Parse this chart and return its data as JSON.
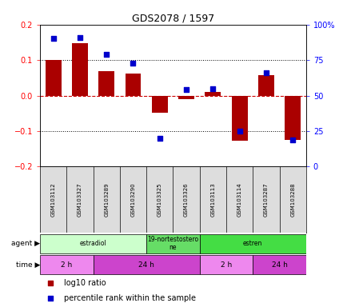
{
  "title": "GDS2078 / 1597",
  "samples": [
    "GSM103112",
    "GSM103327",
    "GSM103289",
    "GSM103290",
    "GSM103325",
    "GSM103326",
    "GSM103113",
    "GSM103114",
    "GSM103287",
    "GSM103288"
  ],
  "log10_ratio": [
    0.1,
    0.148,
    0.068,
    0.063,
    -0.048,
    -0.01,
    0.01,
    -0.128,
    0.058,
    -0.125
  ],
  "percentile_rank": [
    90,
    91,
    79,
    73,
    20,
    54,
    55,
    25,
    66,
    19
  ],
  "ylim": [
    -0.2,
    0.2
  ],
  "yticks_left": [
    -0.2,
    -0.1,
    0.0,
    0.1,
    0.2
  ],
  "yticks_right": [
    0,
    25,
    50,
    75,
    100
  ],
  "bar_color": "#aa0000",
  "scatter_color": "#0000cc",
  "hline_color": "#cc0000",
  "dotted_color": "#000000",
  "agent_groups": [
    {
      "label": "estradiol",
      "start": 0,
      "end": 4,
      "color": "#ccffcc"
    },
    {
      "label": "19-nortestostero\nne",
      "start": 4,
      "end": 6,
      "color": "#66dd66"
    },
    {
      "label": "estren",
      "start": 6,
      "end": 10,
      "color": "#44dd44"
    }
  ],
  "time_groups": [
    {
      "label": "2 h",
      "start": 0,
      "end": 2,
      "color": "#ee88ee"
    },
    {
      "label": "24 h",
      "start": 2,
      "end": 6,
      "color": "#cc44cc"
    },
    {
      "label": "2 h",
      "start": 6,
      "end": 8,
      "color": "#ee88ee"
    },
    {
      "label": "24 h",
      "start": 8,
      "end": 10,
      "color": "#cc44cc"
    }
  ],
  "legend_items": [
    {
      "label": "log10 ratio",
      "color": "#aa0000"
    },
    {
      "label": "percentile rank within the sample",
      "color": "#0000cc"
    }
  ],
  "background_color": "#ffffff",
  "plot_bg": "#ffffff",
  "sample_bg": "#dddddd"
}
